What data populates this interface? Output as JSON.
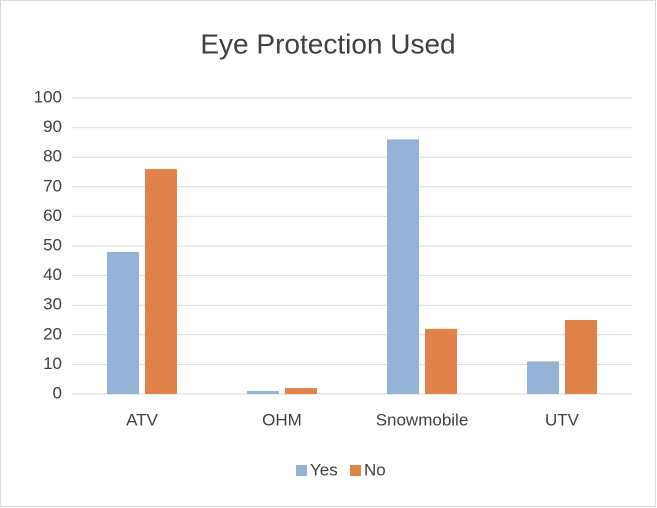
{
  "chart_data": {
    "type": "bar",
    "title": "Eye Protection Used",
    "categories": [
      "ATV",
      "OHM",
      "Snowmobile",
      "UTV"
    ],
    "series": [
      {
        "name": "Yes",
        "color": "#95b3d7",
        "values": [
          48,
          1,
          86,
          11
        ]
      },
      {
        "name": "No",
        "color": "#e0824a",
        "values": [
          76,
          2,
          22,
          25
        ]
      }
    ],
    "ylim": [
      0,
      100
    ],
    "yticks": [
      0,
      10,
      20,
      30,
      40,
      50,
      60,
      70,
      80,
      90,
      100
    ],
    "grid": true,
    "legend": "bottom"
  }
}
